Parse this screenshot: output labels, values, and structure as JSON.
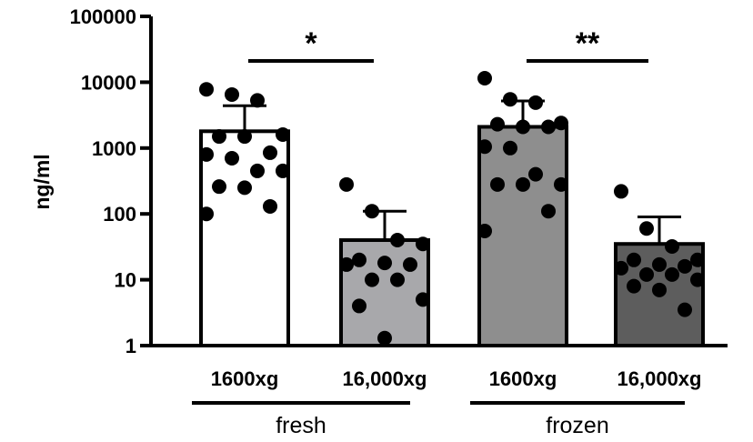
{
  "chart_data": {
    "type": "bar",
    "scale": "log",
    "ylabel": "ng/ml",
    "xlabel": "",
    "title": "",
    "ylim": [
      1,
      100000
    ],
    "yticks": [
      {
        "value": 1,
        "label": "1"
      },
      {
        "value": 10,
        "label": "10"
      },
      {
        "value": 100,
        "label": "100"
      },
      {
        "value": 1000,
        "label": "1000"
      },
      {
        "value": 10000,
        "label": "10000"
      },
      {
        "value": 100000,
        "label": "100000"
      }
    ],
    "categories": [
      "1600xg",
      "16,000xg",
      "1600xg",
      "16,000xg"
    ],
    "groups": [
      {
        "label": "fresh",
        "categories": [
          0,
          1
        ]
      },
      {
        "label": "frozen",
        "categories": [
          2,
          3
        ]
      }
    ],
    "bars": [
      {
        "category": "1600xg",
        "group": "fresh",
        "mean": 1800,
        "error_upper": 4400,
        "color": "#ffffff",
        "points": [
          7800,
          6500,
          5300,
          1600,
          1500,
          1500,
          850,
          800,
          700,
          450,
          450,
          260,
          250,
          130,
          100
        ]
      },
      {
        "category": "16,000xg",
        "group": "fresh",
        "mean": 40,
        "error_upper": 110,
        "color": "#a8a8ab",
        "points": [
          280,
          110,
          40,
          35,
          20,
          18,
          17,
          17,
          10,
          10,
          5,
          4,
          1.3
        ]
      },
      {
        "category": "1600xg",
        "group": "frozen",
        "mean": 2100,
        "error_upper": 5200,
        "color": "#8e8e8e",
        "points": [
          11500,
          5500,
          4900,
          2400,
          2300,
          2100,
          2100,
          1050,
          1000,
          400,
          280,
          280,
          280,
          110,
          55
        ]
      },
      {
        "category": "16,000xg",
        "group": "frozen",
        "mean": 35,
        "error_upper": 90,
        "color": "#5d5d5d",
        "points": [
          220,
          60,
          32,
          20,
          20,
          17,
          16,
          15,
          12,
          12,
          10,
          8,
          7,
          3.5
        ]
      }
    ],
    "significance": [
      {
        "between": [
          0,
          1
        ],
        "label": "*"
      },
      {
        "between": [
          2,
          3
        ],
        "label": "**"
      }
    ],
    "grid": false,
    "legend": "none"
  }
}
